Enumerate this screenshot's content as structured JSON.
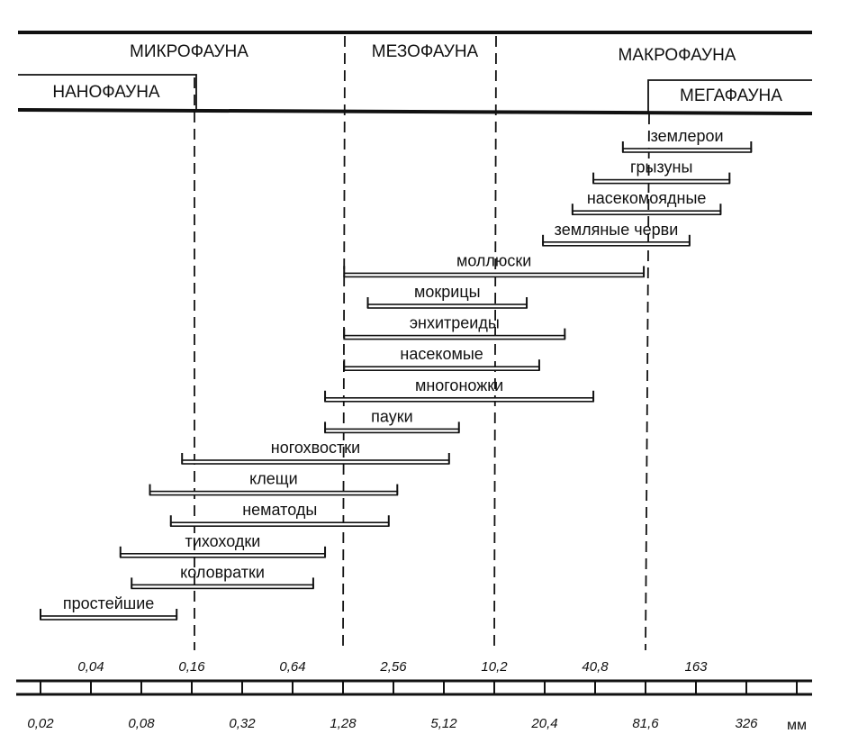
{
  "categories": {
    "microfauna": "МИКРОФАУНА",
    "mesofauna": "МЕЗОФАУНА",
    "macrofauna": "МАКРОФАУНА",
    "nanofauna": "НАНОФАУНА",
    "megafauna": "МЕГАФАУНА"
  },
  "scale": {
    "unit": "мм",
    "upper_ticks": [
      "0,04",
      "0,16",
      "0,64",
      "2,56",
      "10,2",
      "40,8",
      "163"
    ],
    "lower_ticks": [
      "0,02",
      "0,08",
      "0,32",
      "1,28",
      "5,12",
      "20,4",
      "81,6",
      "326"
    ]
  },
  "boundaries_mm": [
    0.1,
    1.2,
    8,
    80
  ],
  "organisms": [
    {
      "name": "землерои",
      "from_mm": 60,
      "to_mm": 350
    },
    {
      "name": "грызуны",
      "from_mm": 40,
      "to_mm": 260
    },
    {
      "name": "насекомоядные",
      "from_mm": 30,
      "to_mm": 230
    },
    {
      "name": "земляные черви",
      "from_mm": 20,
      "to_mm": 150
    },
    {
      "name": "моллюски",
      "from_mm": 1.3,
      "to_mm": 80
    },
    {
      "name": "мокрицы",
      "from_mm": 1.8,
      "to_mm": 16
    },
    {
      "name": "энхитреиды",
      "from_mm": 1.3,
      "to_mm": 27
    },
    {
      "name": "насекомые",
      "from_mm": 1.3,
      "to_mm": 19
    },
    {
      "name": "многоножки",
      "from_mm": 1.0,
      "to_mm": 40
    },
    {
      "name": "пауки",
      "from_mm": 1.0,
      "to_mm": 6.3
    },
    {
      "name": "ногохвостки",
      "from_mm": 0.14,
      "to_mm": 5.5
    },
    {
      "name": "клещи",
      "from_mm": 0.09,
      "to_mm": 2.7
    },
    {
      "name": "нематоды",
      "from_mm": 0.12,
      "to_mm": 2.4
    },
    {
      "name": "тихоходки",
      "from_mm": 0.06,
      "to_mm": 1.0
    },
    {
      "name": "коловратки",
      "from_mm": 0.07,
      "to_mm": 0.85
    },
    {
      "name": "простейшие",
      "from_mm": 0.02,
      "to_mm": 0.13
    }
  ]
}
